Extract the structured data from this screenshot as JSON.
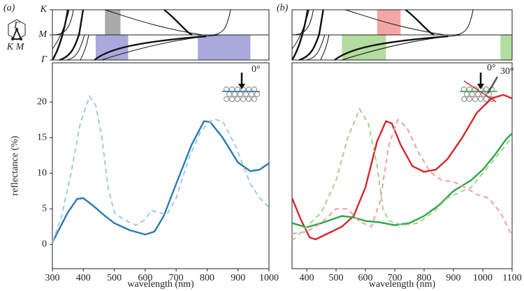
{
  "chart_data": [
    {
      "type": "line",
      "panel_label": "(a)",
      "xlabel": "wavelength (nm)",
      "ylabel": "reflectance (%)",
      "xlim": [
        300,
        1000
      ],
      "xticks": [
        300,
        400,
        500,
        600,
        700,
        800,
        900,
        1000
      ],
      "ylim": [
        -3.4,
        25.5
      ],
      "yticks": [
        0,
        5,
        10,
        15,
        20
      ],
      "band_labels": [
        "K",
        "M",
        "Γ"
      ],
      "inset_labels": [
        "Γ",
        "K M"
      ],
      "annotations": [
        "0°"
      ],
      "bands": [
        {
          "row": "upper",
          "start": 470,
          "end": 520,
          "color": "#aaaaaa"
        },
        {
          "row": "lower",
          "start": 440,
          "end": 545,
          "color": "#a9a9dc"
        },
        {
          "row": "lower",
          "start": 770,
          "end": 940,
          "color": "#a9a9dc"
        }
      ],
      "series": [
        {
          "color": "#2a7ab0",
          "dashed": false,
          "x": [
            300,
            320,
            350,
            380,
            400,
            430,
            470,
            500,
            550,
            600,
            630,
            660,
            700,
            750,
            790,
            810,
            850,
            900,
            940,
            970,
            1000
          ],
          "values": [
            0.3,
            2,
            4.5,
            6.4,
            6.5,
            5.5,
            4,
            3,
            2,
            1.4,
            1.8,
            4,
            8.5,
            14,
            17.3,
            17.2,
            15,
            11.5,
            10.3,
            10.5,
            11.4
          ]
        },
        {
          "color": "#9ecae1",
          "dashed": true,
          "x": [
            300,
            330,
            360,
            390,
            420,
            440,
            460,
            480,
            500,
            530,
            570,
            600,
            620,
            640,
            670,
            700,
            740,
            780,
            820,
            850,
            890,
            940,
            970,
            1000
          ],
          "values": [
            0.3,
            4,
            10,
            17,
            20.8,
            19.5,
            15,
            8,
            4.5,
            3.5,
            2.7,
            3.5,
            4.8,
            4.5,
            4.2,
            6.5,
            12,
            16,
            17.6,
            17.3,
            14,
            8.5,
            6.5,
            5.2
          ]
        }
      ]
    },
    {
      "type": "line",
      "panel_label": "(b)",
      "xlabel": "wavelength (nm)",
      "xlim": [
        350,
        1100
      ],
      "xticks": [
        400,
        500,
        600,
        700,
        800,
        900,
        1000,
        1100
      ],
      "ylim": [
        -3.4,
        25.5
      ],
      "annotations": [
        "0°",
        "30°"
      ],
      "bands": [
        {
          "row": "upper",
          "start": 640,
          "end": 720,
          "color": "#f4a6a6"
        },
        {
          "row": "lower",
          "start": 520,
          "end": 670,
          "color": "#b3dc9e"
        },
        {
          "row": "lower",
          "start": 1060,
          "end": 1100,
          "color": "#b3dc9e"
        }
      ],
      "series": [
        {
          "color": "#d7262b",
          "dashed": false,
          "x": [
            350,
            380,
            410,
            430,
            470,
            520,
            560,
            600,
            640,
            670,
            690,
            720,
            760,
            800,
            840,
            880,
            930,
            980,
            1030,
            1070,
            1100
          ],
          "values": [
            6.5,
            3.5,
            1,
            0.7,
            1.5,
            2.5,
            4,
            8,
            14.5,
            17.3,
            17,
            14,
            11,
            10.2,
            10.5,
            12,
            15,
            18.5,
            20.5,
            21,
            20.5
          ]
        },
        {
          "color": "#2aa845",
          "dashed": false,
          "x": [
            350,
            400,
            450,
            520,
            560,
            600,
            650,
            700,
            750,
            800,
            850,
            900,
            960,
            1000,
            1040,
            1080,
            1100
          ],
          "values": [
            3,
            2.4,
            3,
            4,
            3.8,
            3.3,
            3.1,
            2.7,
            3,
            4,
            5.5,
            7.5,
            9,
            10.5,
            12.5,
            14.8,
            15.6
          ]
        },
        {
          "color": "#f0a0a0",
          "dashed": true,
          "x": [
            350,
            400,
            450,
            500,
            540,
            580,
            620,
            650,
            680,
            710,
            740,
            780,
            820,
            860,
            900,
            940,
            980,
            1020,
            1060,
            1100
          ],
          "values": [
            1.5,
            1.8,
            3,
            5,
            5,
            3.2,
            2.5,
            6,
            14,
            17.5,
            16.5,
            13,
            10.2,
            9,
            8.8,
            8,
            7,
            6.5,
            4.5,
            1.2
          ]
        },
        {
          "color": "#a8d08d",
          "dashed": true,
          "x": [
            350,
            400,
            450,
            500,
            540,
            580,
            610,
            640,
            660,
            680,
            730,
            780,
            830,
            880,
            930,
            960,
            1000,
            1050,
            1100
          ],
          "values": [
            0.5,
            2.5,
            4.5,
            9,
            15,
            19,
            17,
            11,
            5,
            3.3,
            2.7,
            3,
            4.5,
            6.5,
            7.5,
            8,
            10,
            12.5,
            15
          ]
        }
      ]
    }
  ]
}
